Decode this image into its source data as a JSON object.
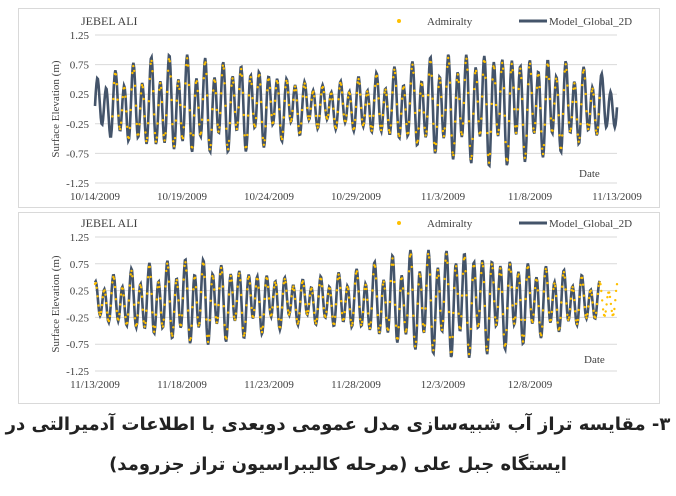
{
  "caption": {
    "line1": "۳- مقایسه تراز آب شبیه‌سازی مدل عمومی دوبعدی با اطلاعات آدمیرالتی در",
    "line2": "ایستگاه جبل علی (مرحله کالیبراسیون تراز جزرومد)"
  },
  "colors": {
    "model": "#44546a",
    "admiralty": "#ffc000",
    "grid": "#d9d9d9"
  },
  "chart_data": [
    {
      "type": "line",
      "title": "JEBEL ALI",
      "xlabel": "Date",
      "ylabel": "Surface Elevation (m)",
      "ylim": [
        -1.25,
        1.25
      ],
      "yticks": [
        "-1.25",
        "-0.75",
        "-0.25",
        "0.25",
        "0.75",
        "1.25"
      ],
      "xlim": [
        "10/14/2009",
        "11/13/2009"
      ],
      "xticks": [
        "10/14/2009",
        "10/19/2009",
        "10/24/2009",
        "10/29/2009",
        "11/3/2009",
        "11/8/2009",
        "11/13/2009"
      ],
      "grid": true,
      "legend_position": "top-right",
      "series": [
        {
          "name": "Admiralty",
          "style": "dots",
          "x_range": [
            "10/15/2009",
            "11/12/2009"
          ]
        },
        {
          "name": "Model_Global_2D",
          "style": "line",
          "x_range": [
            "10/14/2009",
            "11/13/2009"
          ]
        }
      ],
      "tidal_envelope": {
        "days_from_start": [
          0,
          3,
          5,
          9,
          13,
          16,
          20,
          23,
          27,
          30
        ],
        "amplitude_m": [
          0.45,
          0.75,
          0.82,
          0.7,
          0.35,
          0.5,
          0.85,
          0.95,
          0.75,
          0.4
        ]
      }
    },
    {
      "type": "line",
      "title": "JEBEL ALI",
      "xlabel": "Date",
      "ylabel": "Surface Elevation (m)",
      "ylim": [
        -1.25,
        1.25
      ],
      "yticks": [
        "-1.25",
        "-0.75",
        "-0.25",
        "0.25",
        "0.75",
        "1.25"
      ],
      "xlim": [
        "11/13/2009",
        "12/13/2009"
      ],
      "xticks": [
        "11/13/2009",
        "11/18/2009",
        "11/23/2009",
        "11/28/2009",
        "12/3/2009",
        "12/8/2009"
      ],
      "grid": true,
      "legend_position": "top-right",
      "series": [
        {
          "name": "Admiralty",
          "style": "dots",
          "x_range": [
            "11/13/2009",
            "12/13/2009"
          ]
        },
        {
          "name": "Model_Global_2D",
          "style": "line",
          "x_range": [
            "11/13/2009",
            "12/12/2009"
          ]
        }
      ],
      "tidal_envelope": {
        "days_from_start": [
          0,
          3,
          6,
          9,
          12,
          15,
          18,
          21,
          24,
          27,
          29
        ],
        "amplitude_m": [
          0.35,
          0.65,
          0.8,
          0.6,
          0.4,
          0.55,
          0.9,
          1.0,
          0.8,
          0.55,
          0.35
        ]
      }
    }
  ]
}
